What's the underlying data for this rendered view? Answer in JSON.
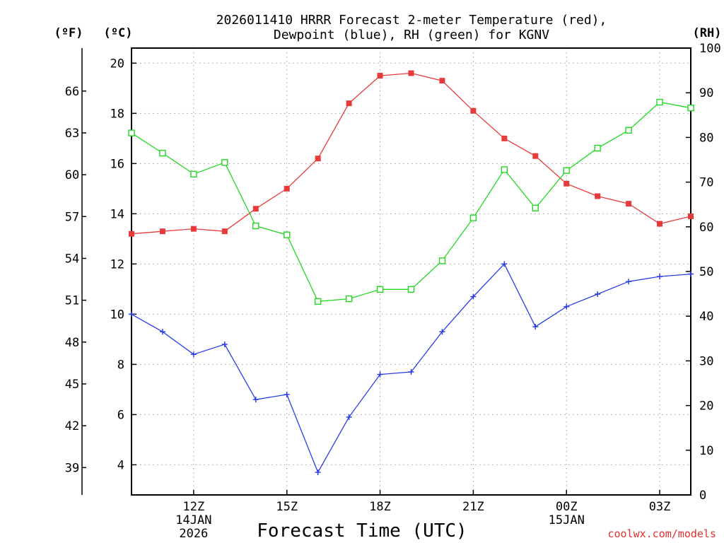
{
  "chart_data": {
    "type": "line",
    "title_line1": "2026011410 HRRR Forecast 2-meter Temperature (red),",
    "title_line2": "Dewpoint (blue), RH (green) for KGNV",
    "xlabel": "Forecast Time (UTC)",
    "credit": "coolwx.com/models",
    "left_unit_f": "(ºF)",
    "left_unit_c": "(ºC)",
    "right_unit": "(RH)",
    "hours": [
      10,
      11,
      12,
      13,
      14,
      15,
      16,
      17,
      18,
      19,
      20,
      21,
      22,
      23,
      24,
      25,
      26,
      27,
      28
    ],
    "xlim": [
      10,
      28
    ],
    "x_ticks": [
      {
        "hour": 12,
        "lines": [
          "12Z",
          "14JAN",
          "2026"
        ]
      },
      {
        "hour": 15,
        "lines": [
          "15Z"
        ]
      },
      {
        "hour": 18,
        "lines": [
          "18Z"
        ]
      },
      {
        "hour": 21,
        "lines": [
          "21Z"
        ]
      },
      {
        "hour": 24,
        "lines": [
          "00Z",
          "15JAN"
        ]
      },
      {
        "hour": 27,
        "lines": [
          "03Z"
        ]
      }
    ],
    "celsius_axis": {
      "ylim": [
        2.8,
        20.6
      ],
      "ticks": [
        4,
        6,
        8,
        10,
        12,
        14,
        16,
        18,
        20
      ]
    },
    "fahrenheit_axis": {
      "ticks": [
        39,
        42,
        45,
        48,
        51,
        54,
        57,
        60,
        63,
        66
      ]
    },
    "rh_axis": {
      "ylim": [
        0,
        100
      ],
      "ticks": [
        0,
        10,
        20,
        30,
        40,
        50,
        60,
        70,
        80,
        90,
        100
      ]
    },
    "series": [
      {
        "name": "2-meter Temperature",
        "color": "#e83a3a",
        "marker": "filled-square",
        "axis": "celsius",
        "values": [
          13.2,
          13.3,
          13.4,
          13.3,
          14.2,
          15.0,
          16.2,
          18.4,
          19.5,
          19.6,
          19.3,
          18.1,
          17.0,
          16.3,
          15.2,
          14.7,
          14.4,
          13.6,
          13.9
        ]
      },
      {
        "name": "Dewpoint",
        "color": "#2b3ee6",
        "marker": "plus",
        "axis": "celsius",
        "values": [
          10.0,
          9.3,
          8.4,
          8.8,
          6.6,
          6.8,
          3.7,
          5.9,
          7.6,
          7.7,
          9.3,
          10.7,
          12.0,
          9.5,
          10.3,
          10.8,
          11.3,
          11.5,
          11.6
        ]
      },
      {
        "name": "RH",
        "color": "#22d822",
        "marker": "open-square",
        "axis": "rh",
        "values": [
          81.0,
          76.5,
          71.8,
          74.4,
          60.2,
          58.2,
          43.3,
          43.9,
          46.0,
          46.0,
          52.4,
          62.0,
          72.8,
          64.2,
          72.6,
          77.6,
          81.6,
          87.9,
          86.6
        ]
      }
    ]
  }
}
